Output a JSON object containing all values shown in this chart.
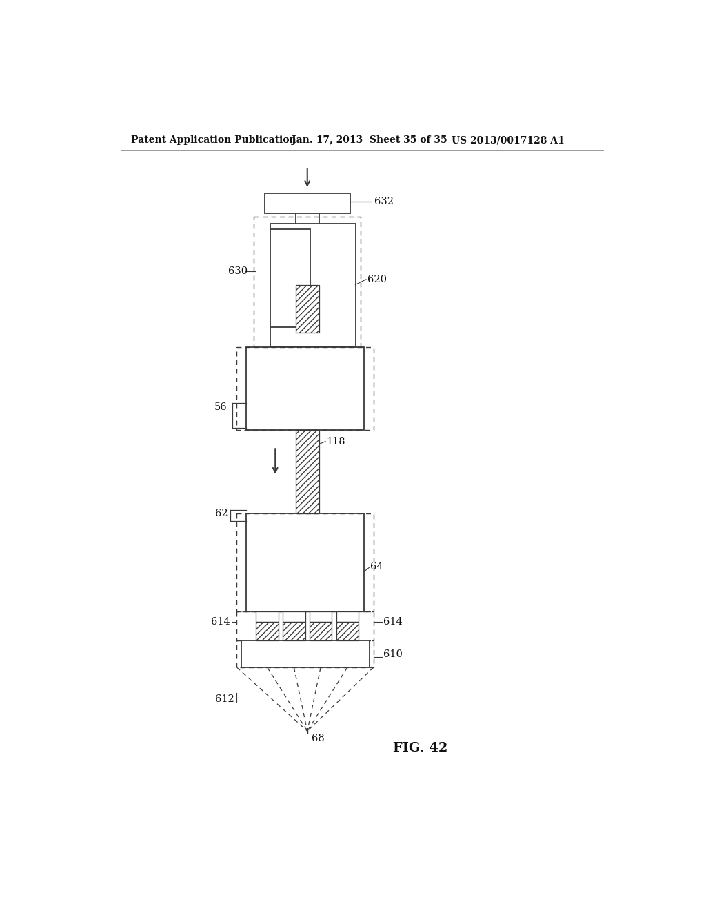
{
  "bg_color": "#ffffff",
  "line_color": "#3a3a3a",
  "header_left": "Patent Application Publication",
  "header_mid": "Jan. 17, 2013  Sheet 35 of 35",
  "header_right": "US 2013/0017128 A1",
  "fig_label": "FIG. 42"
}
